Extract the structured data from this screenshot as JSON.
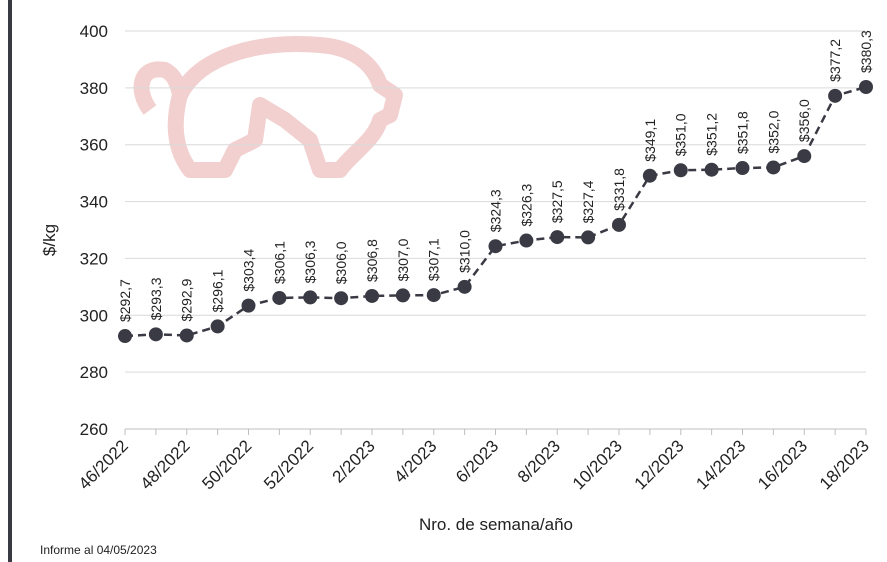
{
  "chart_data": {
    "type": "line",
    "ylabel": "$/kg",
    "xlabel": "Nro. de semana/año",
    "footnote": "Informe al 04/05/2023",
    "categories": [
      "46/2022",
      null,
      "48/2022",
      null,
      "50/2022",
      null,
      "52/2022",
      null,
      "2/2023",
      null,
      "4/2023",
      null,
      "6/2023",
      null,
      "8/2023",
      null,
      "10/2023",
      null,
      "12/2023",
      null,
      "14/2023",
      null,
      "16/2023",
      null,
      "18/2023"
    ],
    "series": [
      {
        "color": "#3a3a45",
        "values": [
          292.7,
          293.3,
          292.9,
          296.1,
          303.4,
          306.1,
          306.3,
          306.0,
          306.8,
          307.0,
          307.1,
          310.0,
          324.3,
          326.3,
          327.5,
          327.4,
          331.8,
          349.1,
          351.0,
          351.2,
          351.8,
          352.0,
          356.0,
          377.2,
          380.3
        ],
        "value_labels": [
          "$292,7",
          "$293,3",
          "$292,9",
          "$296,1",
          "$303,4",
          "$306,1",
          "$306,3",
          "$306,0",
          "$306,8",
          "$307,0",
          "$307,1",
          "$310,0",
          "$324,3",
          "$326,3",
          "$327,5",
          "$327,4",
          "$331,8",
          "$349,1",
          "$351,0",
          "$351,2",
          "$351,8",
          "$352,0",
          "$356,0",
          "$377,2",
          "$380,3"
        ]
      }
    ],
    "ylim": [
      260,
      400
    ],
    "yticks": [
      260,
      280,
      300,
      320,
      340,
      360,
      380,
      400
    ],
    "grid": true
  }
}
